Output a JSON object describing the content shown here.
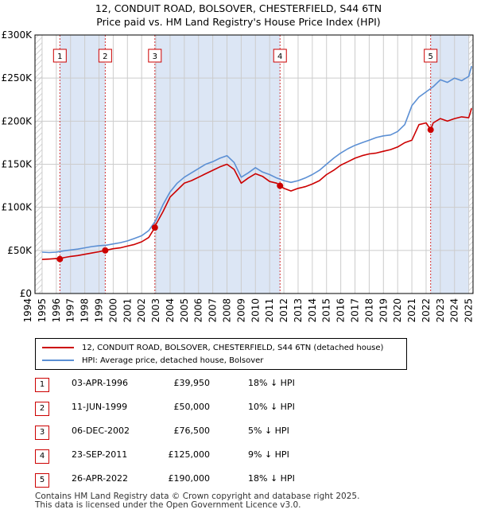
{
  "title": {
    "line1": "12, CONDUIT ROAD, BOLSOVER, CHESTERFIELD, S44 6TN",
    "line2": "Price paid vs. HM Land Registry's House Price Index (HPI)"
  },
  "chart_data": {
    "type": "line",
    "title": "12, CONDUIT ROAD, BOLSOVER, CHESTERFIELD, S44 6TN — Price paid vs. HM Land Registry's House Price Index (HPI)",
    "xlim": [
      1994.5,
      2025.3
    ],
    "ylim": [
      0,
      300000
    ],
    "x_ticks": [
      "1994",
      "1995",
      "1996",
      "1997",
      "1998",
      "1999",
      "2000",
      "2001",
      "2002",
      "2003",
      "2004",
      "2005",
      "2006",
      "2007",
      "2008",
      "2009",
      "2010",
      "2011",
      "2012",
      "2013",
      "2014",
      "2015",
      "2016",
      "2017",
      "2018",
      "2019",
      "2020",
      "2021",
      "2022",
      "2023",
      "2024",
      "2025"
    ],
    "y_ticks": [
      {
        "value": 0,
        "label": "£0"
      },
      {
        "value": 50000,
        "label": "£50K"
      },
      {
        "value": 100000,
        "label": "£100K"
      },
      {
        "value": 150000,
        "label": "£150K"
      },
      {
        "value": 200000,
        "label": "£200K"
      },
      {
        "value": 250000,
        "label": "£250K"
      },
      {
        "value": 300000,
        "label": "£300K"
      }
    ],
    "grid": true,
    "shaded_spans": [
      [
        1996.25,
        1999.44
      ],
      [
        2002.93,
        2011.73
      ],
      [
        2022.32,
        2025.0
      ]
    ],
    "hatched_spans": [
      [
        1994.5,
        1995.0
      ],
      [
        2025.0,
        2025.3
      ]
    ],
    "series": [
      {
        "name": "12, CONDUIT ROAD, BOLSOVER, CHESTERFIELD, S44 6TN (detached house)",
        "color": "#cc0000",
        "x": [
          1995.0,
          1995.5,
          1996.0,
          1996.25,
          1996.5,
          1997.0,
          1997.5,
          1998.0,
          1998.5,
          1999.0,
          1999.44,
          2000.0,
          2000.5,
          2001.0,
          2001.5,
          2002.0,
          2002.5,
          2002.93,
          2003.0,
          2003.5,
          2004.0,
          2004.5,
          2005.0,
          2005.5,
          2006.0,
          2006.5,
          2007.0,
          2007.5,
          2008.0,
          2008.5,
          2009.0,
          2009.5,
          2010.0,
          2010.5,
          2011.0,
          2011.5,
          2011.73,
          2012.0,
          2012.5,
          2013.0,
          2013.5,
          2014.0,
          2014.5,
          2015.0,
          2015.5,
          2016.0,
          2016.5,
          2017.0,
          2017.5,
          2018.0,
          2018.5,
          2019.0,
          2019.5,
          2020.0,
          2020.5,
          2021.0,
          2021.5,
          2022.0,
          2022.32,
          2022.5,
          2023.0,
          2023.5,
          2024.0,
          2024.5,
          2025.0,
          2025.2
        ],
        "values": [
          39500,
          40000,
          40500,
          39950,
          41500,
          43000,
          44000,
          45500,
          47000,
          48500,
          50000,
          52000,
          53000,
          55000,
          57000,
          60000,
          65000,
          76500,
          80000,
          95000,
          112000,
          120000,
          128000,
          131000,
          135000,
          139000,
          143000,
          147000,
          150000,
          144000,
          128000,
          134000,
          139000,
          136000,
          130000,
          128000,
          125000,
          122000,
          119000,
          122000,
          124000,
          127000,
          131000,
          138000,
          143000,
          149000,
          153000,
          157000,
          160000,
          162000,
          163000,
          165000,
          167000,
          170000,
          175000,
          178000,
          196000,
          198000,
          190000,
          198000,
          203000,
          200000,
          203000,
          205000,
          204000,
          215000
        ]
      },
      {
        "name": "HPI: Average price, detached house, Bolsover",
        "color": "#5b8fd4",
        "x": [
          1995.0,
          1995.5,
          1996.0,
          1996.5,
          1997.0,
          1997.5,
          1998.0,
          1998.5,
          1999.0,
          1999.5,
          2000.0,
          2000.5,
          2001.0,
          2001.5,
          2002.0,
          2002.5,
          2003.0,
          2003.5,
          2004.0,
          2004.5,
          2005.0,
          2005.5,
          2006.0,
          2006.5,
          2007.0,
          2007.5,
          2008.0,
          2008.5,
          2009.0,
          2009.5,
          2010.0,
          2010.5,
          2011.0,
          2011.5,
          2012.0,
          2012.5,
          2013.0,
          2013.5,
          2014.0,
          2014.5,
          2015.0,
          2015.5,
          2016.0,
          2016.5,
          2017.0,
          2017.5,
          2018.0,
          2018.5,
          2019.0,
          2019.5,
          2020.0,
          2020.5,
          2021.0,
          2021.5,
          2022.0,
          2022.5,
          2023.0,
          2023.5,
          2024.0,
          2024.5,
          2025.0,
          2025.2
        ],
        "values": [
          48000,
          47500,
          48000,
          49500,
          50500,
          51500,
          53000,
          54500,
          55500,
          56000,
          57500,
          59000,
          61000,
          64000,
          67000,
          73000,
          85000,
          103000,
          118000,
          128000,
          135000,
          140000,
          145000,
          150000,
          153000,
          157000,
          160000,
          152000,
          135000,
          140000,
          146000,
          141000,
          138000,
          134000,
          131000,
          129000,
          131000,
          134000,
          138000,
          143000,
          150000,
          157000,
          163000,
          168000,
          172000,
          175000,
          178000,
          181000,
          183000,
          184000,
          188000,
          196000,
          218000,
          228000,
          234000,
          240000,
          248000,
          245000,
          250000,
          247000,
          252000,
          264000
        ]
      }
    ],
    "sales": [
      {
        "label": "1",
        "x": 1996.25,
        "price": 39950
      },
      {
        "label": "2",
        "x": 1999.44,
        "price": 50000
      },
      {
        "label": "3",
        "x": 2002.93,
        "price": 76500
      },
      {
        "label": "4",
        "x": 2011.73,
        "price": 125000
      },
      {
        "label": "5",
        "x": 2022.32,
        "price": 190000
      }
    ]
  },
  "legend": {
    "property_label": "12, CONDUIT ROAD, BOLSOVER, CHESTERFIELD, S44 6TN (detached house)",
    "hpi_label": "HPI: Average price, detached house, Bolsover"
  },
  "sales_table": [
    {
      "num": "1",
      "date": "03-APR-1996",
      "price": "£39,950",
      "hpi": "18% ↓ HPI"
    },
    {
      "num": "2",
      "date": "11-JUN-1999",
      "price": "£50,000",
      "hpi": "10% ↓ HPI"
    },
    {
      "num": "3",
      "date": "06-DEC-2002",
      "price": "£76,500",
      "hpi": "5% ↓ HPI"
    },
    {
      "num": "4",
      "date": "23-SEP-2011",
      "price": "£125,000",
      "hpi": "9% ↓ HPI"
    },
    {
      "num": "5",
      "date": "26-APR-2022",
      "price": "£190,000",
      "hpi": "18% ↓ HPI"
    }
  ],
  "footer": {
    "line1": "Contains HM Land Registry data © Crown copyright and database right 2025.",
    "line2": "This data is licensed under the Open Government Licence v3.0."
  },
  "colors": {
    "property_line": "#cc0000",
    "hpi_line": "#5b8fd4",
    "shade": "#dce6f5",
    "grid": "#cccccc",
    "sale_marker_border": "#cc0000"
  }
}
